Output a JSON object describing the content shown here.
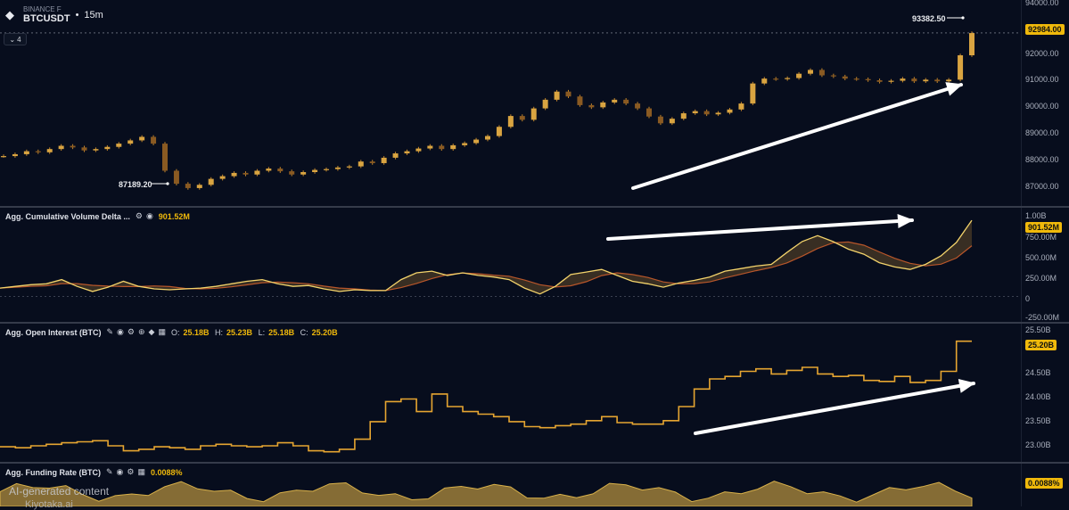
{
  "header": {
    "exchange": "BINANCE F",
    "symbol": "BTCUSDT",
    "timeframe": "15m",
    "collapse_count": "4"
  },
  "price_pane": {
    "axis_labels": [
      "94000.00",
      "92000.00",
      "91000.00",
      "90000.00",
      "89000.00",
      "88000.00",
      "87000.00"
    ],
    "current_price": "92984.00",
    "high_label": "93382.50",
    "low_label": "87189.20",
    "ylim": [
      86600,
      94200
    ],
    "candles_close": [
      88440,
      88510,
      88620,
      88580,
      88700,
      88820,
      88760,
      88650,
      88700,
      88780,
      88900,
      89020,
      89150,
      88900,
      87900,
      87420,
      87260,
      87380,
      87600,
      87700,
      87820,
      87760,
      87900,
      87980,
      87880,
      87760,
      87850,
      87930,
      87960,
      88020,
      88060,
      88240,
      88180,
      88380,
      88540,
      88620,
      88720,
      88820,
      88700,
      88840,
      88920,
      89050,
      89180,
      89520,
      89920,
      89780,
      90200,
      90520,
      90820,
      90640,
      90320,
      90240,
      90420,
      90520,
      90380,
      90200,
      89900,
      89650,
      89820,
      90020,
      90100,
      89980,
      90040,
      90160,
      90380,
      91120,
      91300,
      91280,
      91320,
      91480,
      91620,
      91420,
      91380,
      91300,
      91280,
      91240,
      91180,
      91220,
      91300,
      91200,
      91260,
      91200,
      91260,
      92160,
      92980
    ]
  },
  "cvd_pane": {
    "title": "Agg. Cumulative Volume Delta ...",
    "value": "901.52M",
    "axis_labels": [
      "1.00B",
      "750.00M",
      "500.00M",
      "250.00M",
      "0",
      "-250.00M"
    ],
    "ylim": [
      -300,
      1050
    ],
    "series": [
      100,
      120,
      140,
      150,
      200,
      120,
      60,
      110,
      180,
      120,
      90,
      80,
      90,
      100,
      120,
      150,
      180,
      200,
      150,
      120,
      130,
      90,
      60,
      80,
      70,
      70,
      200,
      280,
      300,
      250,
      280,
      250,
      230,
      200,
      100,
      30,
      120,
      260,
      290,
      320,
      250,
      180,
      150,
      110,
      160,
      190,
      230,
      300,
      330,
      360,
      380,
      520,
      650,
      720,
      650,
      560,
      500,
      400,
      350,
      320,
      380,
      480,
      640,
      901.52
    ]
  },
  "oi_pane": {
    "title": "Agg. Open Interest (BTC)",
    "ohlc": {
      "o": "25.18B",
      "h": "25.23B",
      "l": "25.18B",
      "c": "25.20B"
    },
    "ohlc_labels": {
      "o": "O:",
      "h": "H:",
      "l": "L:",
      "c": "C:"
    },
    "axis_labels": [
      "25.50B",
      "24.50B",
      "24.00B",
      "23.50B",
      "23.00B"
    ],
    "current_value": "25.20B",
    "ylim": [
      22.8,
      25.55
    ],
    "series": [
      23.1,
      23.08,
      23.12,
      23.15,
      23.18,
      23.2,
      23.22,
      23.12,
      23.02,
      23.05,
      23.1,
      23.08,
      23.05,
      23.12,
      23.15,
      23.12,
      23.1,
      23.12,
      23.18,
      23.12,
      23.02,
      23.0,
      23.05,
      23.25,
      23.6,
      24.0,
      24.05,
      23.8,
      24.15,
      23.9,
      23.8,
      23.75,
      23.7,
      23.6,
      23.5,
      23.48,
      23.52,
      23.55,
      23.62,
      23.7,
      23.58,
      23.55,
      23.55,
      23.62,
      23.9,
      24.25,
      24.45,
      24.5,
      24.6,
      24.65,
      24.55,
      24.62,
      24.68,
      24.55,
      24.5,
      24.52,
      24.42,
      24.4,
      24.5,
      24.38,
      24.42,
      24.6,
      25.2,
      25.2
    ]
  },
  "funding_pane": {
    "title": "Agg. Funding Rate (BTC)",
    "value": "0.0088%"
  },
  "colors": {
    "background": "#070d1d",
    "accent": "#f0b90b",
    "candle": "#c5882a",
    "arrow": "#ffffff"
  },
  "watermark": {
    "line1": "AI-generated content",
    "line2": "Kiyotaka.ai"
  }
}
